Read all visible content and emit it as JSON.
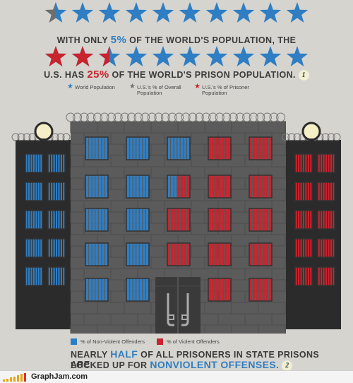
{
  "header": {
    "line1_pre": "WITH ONLY ",
    "line1_pct": "5%",
    "line1_post": " OF THE WORLD'S POPULATION, THE",
    "line2_pre": "U.S. HAS ",
    "line2_pct": "25%",
    "line2_post": " OF THE WORLD'S PRISON POPULATION.",
    "note_number": "1"
  },
  "star_rows": {
    "row1": {
      "count": 10,
      "gray_fraction": 0.5,
      "red_fraction": 0
    },
    "row2": {
      "count": 10,
      "gray_fraction": 0,
      "red_fraction": 2.5
    }
  },
  "legend_top": {
    "world": "World Population",
    "us_overall_line1": "U.S.'s % of Overall",
    "us_overall_line2": "Population",
    "us_prisoner_line1": "U.S.'s  % of Prisoner",
    "us_prisoner_line2": "Population"
  },
  "legend_bottom": {
    "nonviolent": "% of Non-Violent Offenders",
    "violent": "% of Violent Offenders"
  },
  "footer_text": {
    "line1_pre": "NEARLY ",
    "line1_highlight": "HALF",
    "line1_post": " OF ALL PRISONERS IN STATE PRISONS ARE",
    "line2_pre": "LOCKED UP FOR ",
    "line2_highlight": "NONVIOLENT OFFENSES.",
    "note_number": "2"
  },
  "colors": {
    "blue": "#2f7ec3",
    "red": "#c8242e",
    "gray": "#6e6e6e",
    "background": "#d6d4cf",
    "building": "#5b5b5b",
    "wing": "#2b2b2b"
  },
  "site": {
    "name": "GraphJam.com"
  }
}
